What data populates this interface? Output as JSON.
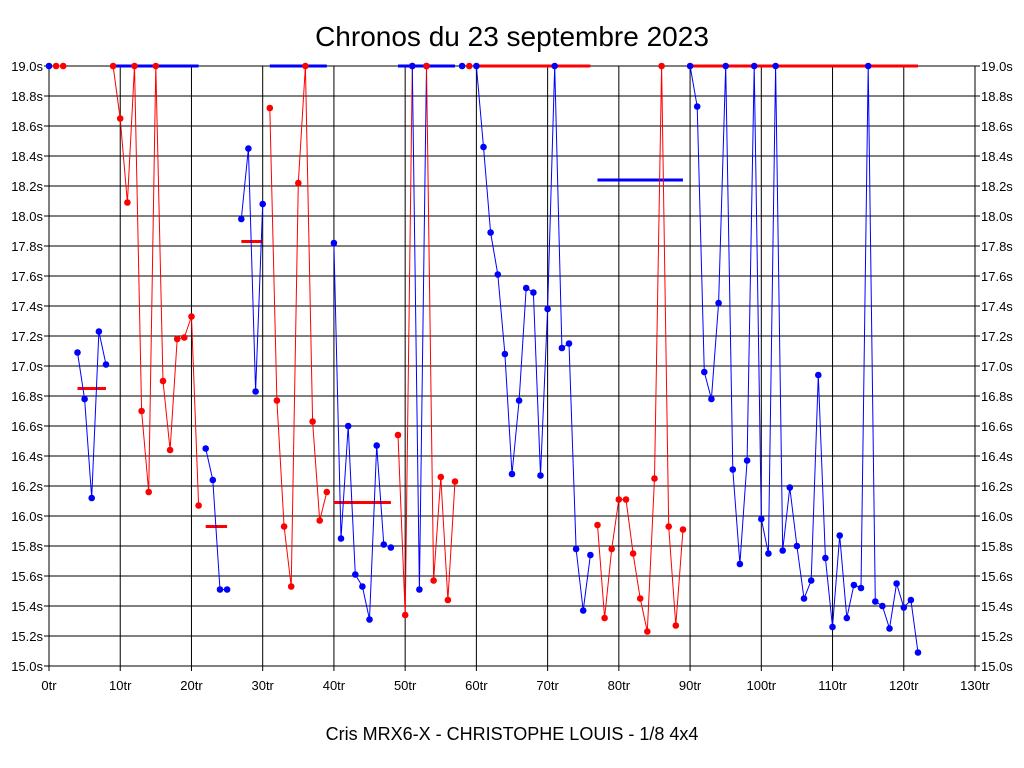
{
  "chart_data": {
    "type": "line",
    "title": "Chronos du 23 septembre 2023",
    "caption": "Cris MRX6-X - CHRISTOPHE LOUIS - 1/8 4x4",
    "x_ticks": [
      "0tr",
      "10tr",
      "20tr",
      "30tr",
      "40tr",
      "50tr",
      "60tr",
      "70tr",
      "80tr",
      "90tr",
      "100tr",
      "110tr",
      "120tr",
      "130tr"
    ],
    "y_ticks": [
      "15.0s",
      "15.2s",
      "15.4s",
      "15.6s",
      "15.8s",
      "16.0s",
      "16.2s",
      "16.4s",
      "16.6s",
      "16.8s",
      "17.0s",
      "17.2s",
      "17.4s",
      "17.6s",
      "17.8s",
      "18.0s",
      "18.2s",
      "18.4s",
      "18.6s",
      "18.8s",
      "19.0s"
    ],
    "xlim": [
      0,
      130
    ],
    "ylim": [
      15.0,
      19.0
    ],
    "grid": true,
    "colors": {
      "blue": "#0000ff",
      "red": "#ff0000",
      "grid": "#000000"
    },
    "segments": [
      {
        "color": "blue",
        "x": [
          0
        ],
        "y": [
          19.0
        ]
      },
      {
        "color": "red",
        "x": [
          1,
          2
        ],
        "y": [
          19.0,
          19.0
        ]
      },
      {
        "color": "blue",
        "x": [
          4,
          5,
          6,
          7,
          8
        ],
        "y": [
          17.09,
          16.78,
          16.12,
          17.23,
          17.01
        ]
      },
      {
        "color": "red",
        "x": [
          9,
          10,
          11,
          12,
          13,
          14,
          15,
          16,
          17,
          18,
          19,
          20,
          21
        ],
        "y": [
          19.0,
          18.65,
          18.09,
          19.0,
          16.7,
          16.16,
          19.0,
          16.9,
          16.44,
          17.18,
          17.19,
          17.33,
          16.07
        ]
      },
      {
        "color": "blue",
        "x": [
          22,
          23,
          24,
          25
        ],
        "y": [
          16.45,
          16.24,
          15.51,
          15.51
        ]
      },
      {
        "color": "blue",
        "x": [
          27,
          28,
          29,
          30
        ],
        "y": [
          17.98,
          18.45,
          16.83,
          18.08
        ]
      },
      {
        "color": "red",
        "x": [
          31,
          32,
          33,
          34,
          35,
          36,
          37,
          38,
          39
        ],
        "y": [
          18.72,
          16.77,
          15.93,
          15.53,
          18.22,
          19.0,
          16.63,
          15.97,
          16.16
        ]
      },
      {
        "color": "blue",
        "x": [
          40,
          41,
          42,
          43,
          44,
          45,
          46,
          47,
          48
        ],
        "y": [
          17.82,
          15.85,
          16.6,
          15.61,
          15.53,
          15.31,
          16.47,
          15.81,
          15.79
        ]
      },
      {
        "color": "red",
        "x": [
          49,
          50,
          51
        ],
        "y": [
          16.54,
          15.34,
          19.0
        ]
      },
      {
        "color": "blue",
        "x": [
          51,
          52,
          53
        ],
        "y": [
          19.0,
          15.51,
          19.0
        ]
      },
      {
        "color": "red",
        "x": [
          53,
          54,
          55,
          56,
          57
        ],
        "y": [
          19.0,
          15.57,
          16.26,
          15.44,
          16.23
        ]
      },
      {
        "color": "blue",
        "x": [
          58
        ],
        "y": [
          19.0
        ]
      },
      {
        "color": "red",
        "x": [
          59
        ],
        "y": [
          19.0
        ]
      },
      {
        "color": "blue",
        "x": [
          60,
          61,
          62,
          63,
          64,
          65,
          66,
          67,
          68,
          69,
          70,
          71,
          72,
          73,
          74,
          75,
          76
        ],
        "y": [
          19.0,
          18.46,
          17.89,
          17.61,
          17.08,
          16.28,
          16.77,
          17.52,
          17.49,
          16.27,
          17.38,
          19.0,
          17.12,
          17.15,
          15.78,
          15.37,
          15.74
        ]
      },
      {
        "color": "red",
        "x": [
          77,
          78,
          79,
          80,
          81,
          82,
          83,
          84,
          85,
          86,
          87,
          88,
          89
        ],
        "y": [
          15.94,
          15.32,
          15.78,
          16.11,
          16.11,
          15.75,
          15.45,
          15.23,
          16.25,
          19.0,
          15.93,
          15.27,
          15.91
        ]
      },
      {
        "color": "blue",
        "x": [
          90,
          91,
          92,
          93,
          94,
          95,
          96,
          97,
          98,
          99,
          100,
          101,
          102,
          103,
          104,
          105,
          106,
          107,
          108,
          109,
          110,
          111,
          112,
          113,
          114,
          115,
          116,
          117,
          118,
          119,
          120,
          121,
          122
        ],
        "y": [
          19.0,
          18.73,
          16.96,
          16.78,
          17.42,
          19.0,
          16.31,
          15.68,
          16.37,
          19.0,
          15.98,
          15.75,
          19.0,
          15.77,
          16.19,
          15.8,
          15.45,
          15.57,
          16.94,
          15.72,
          15.26,
          15.87,
          15.32,
          15.54,
          15.52,
          19.0,
          15.43,
          15.4,
          15.25,
          15.55,
          15.39,
          15.44,
          15.09
        ]
      }
    ],
    "ref_lines": [
      {
        "color": "red",
        "x": [
          4,
          8
        ],
        "y": 16.85
      },
      {
        "color": "blue",
        "x": [
          9,
          21
        ],
        "y": 19.0
      },
      {
        "color": "red",
        "x": [
          22,
          25
        ],
        "y": 15.93
      },
      {
        "color": "red",
        "x": [
          27,
          30
        ],
        "y": 17.83
      },
      {
        "color": "blue",
        "x": [
          31,
          39
        ],
        "y": 19.0
      },
      {
        "color": "red",
        "x": [
          40,
          48
        ],
        "y": 16.09
      },
      {
        "color": "blue",
        "x": [
          49,
          57
        ],
        "y": 19.0
      },
      {
        "color": "red",
        "x": [
          60,
          76
        ],
        "y": 19.0
      },
      {
        "color": "blue",
        "x": [
          77,
          89
        ],
        "y": 18.24
      },
      {
        "color": "red",
        "x": [
          90,
          122
        ],
        "y": 19.0
      }
    ]
  }
}
